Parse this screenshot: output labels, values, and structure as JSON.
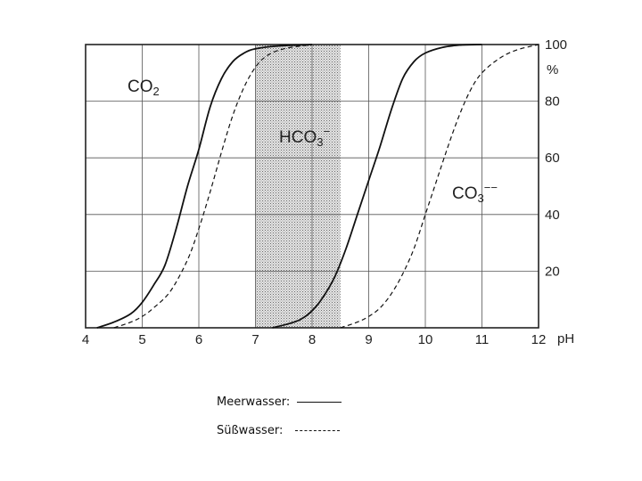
{
  "chart_data": {
    "type": "line",
    "xlabel": "pH",
    "y_unit": "%",
    "xlim": [
      4,
      12
    ],
    "ylim": [
      0,
      100
    ],
    "x_ticks": [
      4,
      5,
      6,
      7,
      8,
      9,
      10,
      11,
      12
    ],
    "y_ticks": [
      20,
      40,
      60,
      80,
      100
    ],
    "grid": true,
    "shaded_region": {
      "x_from": 7.0,
      "x_to": 8.5
    },
    "species_labels": [
      {
        "text": "CO",
        "sub": "2",
        "sup": ""
      },
      {
        "text": "HCO",
        "sub": "3",
        "sup": "−"
      },
      {
        "text": "CO",
        "sub": "3",
        "sup": "−−"
      }
    ],
    "series": [
      {
        "name": "Meerwasser",
        "style": "solid",
        "x": [
          4.2,
          4.5,
          4.8,
          5.0,
          5.2,
          5.4,
          5.6,
          5.8,
          6.0,
          6.2,
          6.4,
          6.6,
          6.8,
          7.0,
          7.4,
          8.0
        ],
        "values": [
          0,
          2,
          5,
          9,
          15,
          22,
          35,
          50,
          63,
          78,
          88,
          94,
          97,
          98.5,
          99.5,
          100
        ]
      },
      {
        "name": "Süßwasser",
        "style": "dashed",
        "x": [
          4.5,
          4.8,
          5.0,
          5.2,
          5.5,
          5.8,
          6.0,
          6.2,
          6.4,
          6.6,
          6.8,
          7.0,
          7.2,
          7.5,
          8.0
        ],
        "values": [
          0,
          2,
          4,
          7,
          13,
          24,
          35,
          48,
          62,
          75,
          85,
          92,
          96,
          98.5,
          100
        ]
      },
      {
        "name": "Meerwasser",
        "style": "solid",
        "x": [
          7.3,
          7.6,
          7.8,
          8.0,
          8.2,
          8.4,
          8.6,
          8.8,
          9.0,
          9.2,
          9.4,
          9.6,
          9.8,
          10.0,
          10.3,
          10.6,
          11.0
        ],
        "values": [
          0,
          1.5,
          3,
          6,
          11,
          18,
          28,
          40,
          52,
          64,
          77,
          88,
          94,
          97,
          99,
          99.8,
          100
        ]
      },
      {
        "name": "Süßwasser",
        "style": "dashed",
        "x": [
          8.5,
          8.8,
          9.0,
          9.2,
          9.4,
          9.6,
          9.8,
          10.0,
          10.2,
          10.4,
          10.6,
          10.8,
          11.0,
          11.3,
          11.6,
          12.0
        ],
        "values": [
          0,
          2,
          4,
          7,
          12,
          19,
          28,
          40,
          52,
          64,
          75,
          84,
          90,
          95,
          98,
          100
        ]
      }
    ]
  },
  "legend": {
    "sea_label": "Meerwasser:",
    "fresh_label": "Süßwasser:"
  }
}
